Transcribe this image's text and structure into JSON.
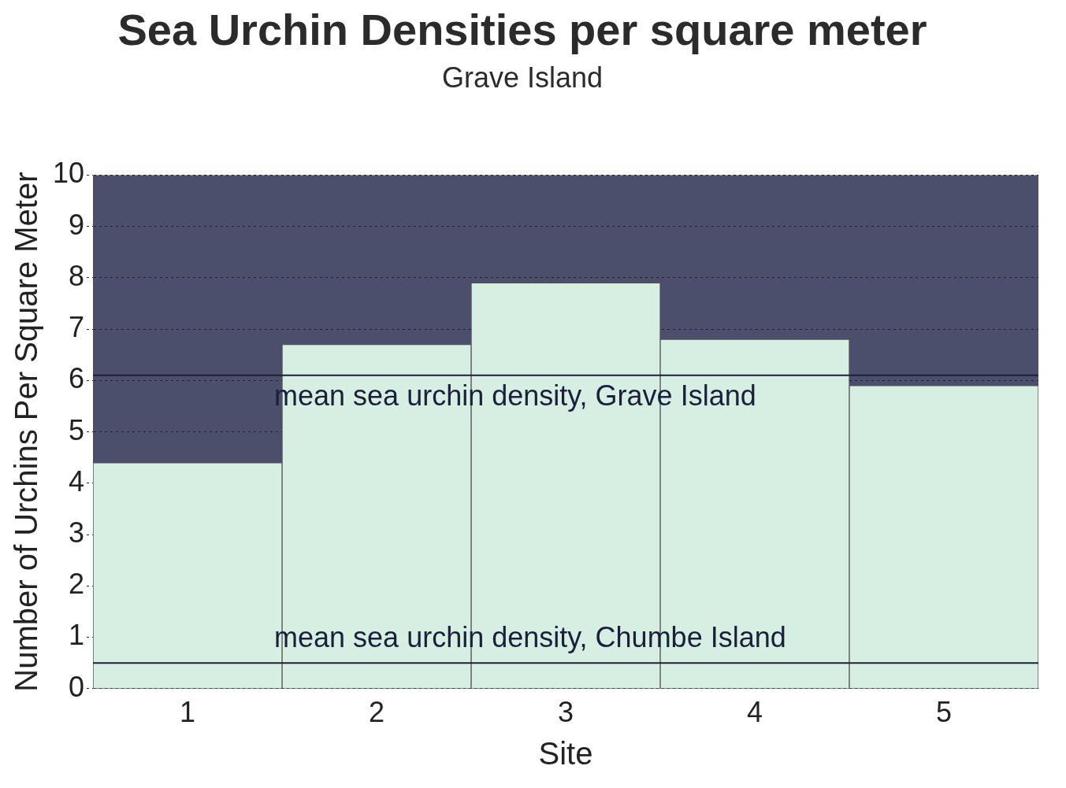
{
  "chart_data": {
    "type": "bar",
    "title": "Sea Urchin Densities per square meter",
    "subtitle": "Grave Island",
    "xlabel": "Site",
    "ylabel": "Number of Urchins Per Square Meter",
    "categories": [
      "1",
      "2",
      "3",
      "4",
      "5"
    ],
    "values": [
      4.4,
      6.7,
      7.9,
      6.8,
      5.9
    ],
    "color": "#d6efe2",
    "bands": [
      {
        "axis": "y",
        "from": 0,
        "to": 10,
        "color": "#4b4f6b"
      }
    ],
    "ylim": [
      0,
      10
    ],
    "yticks": [
      0,
      1,
      2,
      3,
      4,
      5,
      6,
      7,
      8,
      9,
      10
    ],
    "grid": "y",
    "ref_lines": [
      {
        "axis": "y",
        "value": 6.1,
        "label": "mean sea urchin density, Grave Island",
        "color": "#1a1f3a"
      },
      {
        "axis": "y",
        "value": 0.5,
        "label": "mean sea urchin density, Chumbe Island",
        "color": "#1a1f3a"
      }
    ]
  }
}
